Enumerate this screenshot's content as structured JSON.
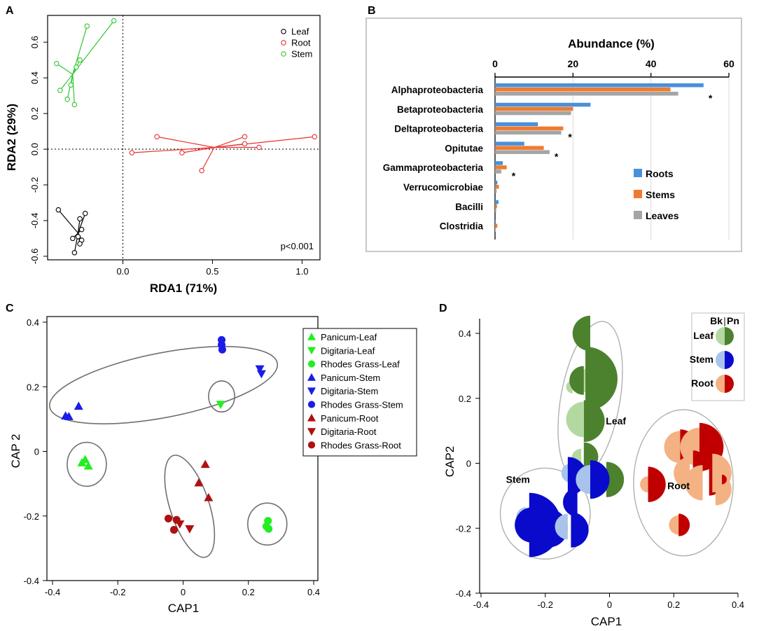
{
  "colors": {
    "leaf_black": "#000000",
    "root_red": "#e8312f",
    "stem_green": "#2ec82e",
    "roots_blue": "#4a90d9",
    "stems_orange": "#ee7b30",
    "leaves_gray": "#a5a5a5",
    "bright_green": "#22ee22",
    "blue": "#1c1ce8",
    "dark_red": "#b01010",
    "dk_green": "#4c822e",
    "lt_green": "#b3d9a0",
    "dk_blue": "#0a0acc",
    "lt_blue": "#a8c4ec",
    "dk_red": "#c00000",
    "lt_salmon": "#f4b183"
  },
  "chart_data": [
    {
      "id": "A",
      "panel_label": "A",
      "type": "scatter",
      "xlabel": "RDA1 (71%)",
      "ylabel": "RDA2 (29%)",
      "xlim": [
        -0.42,
        1.1
      ],
      "ylim": [
        -0.62,
        0.75
      ],
      "xticks": [
        "0.0",
        "0.5",
        "1.0"
      ],
      "xtick_values": [
        0.0,
        0.5,
        1.0
      ],
      "yticks": [
        "-0.6",
        "-0.4",
        "-0.2",
        "0.0",
        "0.2",
        "0.4",
        "0.6"
      ],
      "ytick_values": [
        -0.6,
        -0.4,
        -0.2,
        0.0,
        0.2,
        0.4,
        0.6
      ],
      "annotation": "p<0.001",
      "legend": [
        {
          "name": "Leaf",
          "color": "#000000"
        },
        {
          "name": "Root",
          "color": "#e8312f"
        },
        {
          "name": "Stem",
          "color": "#2ec82e"
        }
      ],
      "groups": [
        {
          "name": "Leaf",
          "color": "#000000",
          "centroid": [
            -0.25,
            -0.47
          ],
          "points": [
            [
              -0.36,
              -0.34
            ],
            [
              -0.21,
              -0.36
            ],
            [
              -0.24,
              -0.39
            ],
            [
              -0.23,
              -0.45
            ],
            [
              -0.25,
              -0.49
            ],
            [
              -0.28,
              -0.5
            ],
            [
              -0.23,
              -0.51
            ],
            [
              -0.24,
              -0.53
            ],
            [
              -0.27,
              -0.58
            ]
          ]
        },
        {
          "name": "Root",
          "color": "#e8312f",
          "centroid": [
            0.51,
            0.01
          ],
          "points": [
            [
              0.19,
              0.07
            ],
            [
              0.05,
              -0.02
            ],
            [
              0.33,
              -0.02
            ],
            [
              0.44,
              -0.12
            ],
            [
              0.68,
              0.07
            ],
            [
              0.68,
              0.03
            ],
            [
              0.76,
              0.01
            ],
            [
              1.07,
              0.07
            ]
          ]
        },
        {
          "name": "Stem",
          "color": "#2ec82e",
          "centroid": [
            -0.28,
            0.42
          ],
          "points": [
            [
              -0.05,
              0.72
            ],
            [
              -0.2,
              0.69
            ],
            [
              -0.37,
              0.48
            ],
            [
              -0.24,
              0.5
            ],
            [
              -0.26,
              0.46
            ],
            [
              -0.29,
              0.36
            ],
            [
              -0.35,
              0.33
            ],
            [
              -0.31,
              0.28
            ],
            [
              -0.27,
              0.25
            ]
          ]
        }
      ]
    },
    {
      "id": "B",
      "panel_label": "B",
      "type": "bar",
      "title": "Abundance (%)",
      "xlim": [
        0,
        60
      ],
      "xticks": [
        "0",
        "20",
        "40",
        "60"
      ],
      "xtick_values": [
        0,
        20,
        40,
        60
      ],
      "categories": [
        "Alphaproteobacteria",
        "Betaproteobacteria",
        "Deltaproteobacteria",
        "Opitutae",
        "Gammaproteobacteria",
        "Verrucomicrobiae",
        "Bacilli",
        "Clostridia"
      ],
      "significant": [
        true,
        false,
        true,
        true,
        true,
        false,
        false,
        false
      ],
      "star_label": "*",
      "series": [
        {
          "name": "Roots",
          "color": "#4a90d9",
          "values": [
            53.5,
            24.5,
            11.0,
            7.5,
            2.0,
            0.6,
            0.9,
            0.2
          ]
        },
        {
          "name": "Stems",
          "color": "#ee7b30",
          "values": [
            45.0,
            20.0,
            17.5,
            12.5,
            3.0,
            1.0,
            0.5,
            0.6
          ]
        },
        {
          "name": "Leaves",
          "color": "#a5a5a5",
          "values": [
            47.0,
            19.5,
            17.0,
            14.0,
            1.6,
            0.4,
            0.3,
            0.1
          ]
        }
      ]
    },
    {
      "id": "C",
      "panel_label": "C",
      "type": "scatter",
      "xlabel": "CAP1",
      "ylabel": "CAP 2",
      "xlim": [
        -0.4,
        0.4
      ],
      "ylim": [
        -0.4,
        0.4
      ],
      "xticks": [
        "-0.4",
        "-0.2",
        "0",
        "0.2",
        "0.4"
      ],
      "xtick_values": [
        -0.4,
        -0.2,
        0,
        0.2,
        0.4
      ],
      "yticks": [
        "-0.4",
        "-0.2",
        "0",
        "0.2",
        "0.4"
      ],
      "ytick_values": [
        -0.4,
        -0.2,
        0,
        0.2,
        0.4
      ],
      "legend": [
        {
          "name": "Panicum-Leaf",
          "marker": "tri-up",
          "color": "#22ee22"
        },
        {
          "name": "Digitaria-Leaf",
          "marker": "tri-down",
          "color": "#22ee22"
        },
        {
          "name": "Rhodes Grass-Leaf",
          "marker": "circle",
          "color": "#22ee22"
        },
        {
          "name": "Panicum-Stem",
          "marker": "tri-up",
          "color": "#1c1ce8"
        },
        {
          "name": "Digitaria-Stem",
          "marker": "tri-down",
          "color": "#1c1ce8"
        },
        {
          "name": "Rhodes Grass-Stem",
          "marker": "circle",
          "color": "#1c1ce8"
        },
        {
          "name": "Panicum-Root",
          "marker": "tri-up",
          "color": "#b01010"
        },
        {
          "name": "Digitaria-Root",
          "marker": "tri-down",
          "color": "#b01010"
        },
        {
          "name": "Rhodes Grass-Root",
          "marker": "circle",
          "color": "#b01010"
        }
      ],
      "points": [
        {
          "group": "Panicum-Leaf",
          "x": -0.3,
          "y": -0.025
        },
        {
          "group": "Panicum-Leaf",
          "x": -0.29,
          "y": -0.045
        },
        {
          "group": "Panicum-Leaf",
          "x": -0.31,
          "y": -0.035
        },
        {
          "group": "Digitaria-Leaf",
          "x": 0.115,
          "y": 0.145
        },
        {
          "group": "Rhodes Grass-Leaf",
          "x": 0.26,
          "y": -0.215
        },
        {
          "group": "Rhodes Grass-Leaf",
          "x": 0.255,
          "y": -0.232
        },
        {
          "group": "Rhodes Grass-Leaf",
          "x": 0.262,
          "y": -0.24
        },
        {
          "group": "Panicum-Stem",
          "x": -0.36,
          "y": 0.11
        },
        {
          "group": "Panicum-Stem",
          "x": -0.35,
          "y": 0.108
        },
        {
          "group": "Panicum-Stem",
          "x": -0.32,
          "y": 0.14
        },
        {
          "group": "Digitaria-Stem",
          "x": 0.235,
          "y": 0.255
        },
        {
          "group": "Digitaria-Stem",
          "x": 0.24,
          "y": 0.24
        },
        {
          "group": "Rhodes Grass-Stem",
          "x": 0.118,
          "y": 0.345
        },
        {
          "group": "Rhodes Grass-Stem",
          "x": 0.118,
          "y": 0.33
        },
        {
          "group": "Rhodes Grass-Stem",
          "x": 0.12,
          "y": 0.315
        },
        {
          "group": "Panicum-Root",
          "x": 0.068,
          "y": -0.04
        },
        {
          "group": "Panicum-Root",
          "x": 0.048,
          "y": -0.097
        },
        {
          "group": "Panicum-Root",
          "x": 0.078,
          "y": -0.143
        },
        {
          "group": "Digitaria-Root",
          "x": -0.01,
          "y": -0.225
        },
        {
          "group": "Digitaria-Root",
          "x": 0.02,
          "y": -0.24
        },
        {
          "group": "Rhodes Grass-Root",
          "x": -0.045,
          "y": -0.208
        },
        {
          "group": "Rhodes Grass-Root",
          "x": -0.02,
          "y": -0.212
        },
        {
          "group": "Rhodes Grass-Root",
          "x": -0.028,
          "y": -0.243
        }
      ],
      "ellipses": [
        {
          "name": "stem-cluster",
          "cx": -0.06,
          "cy": 0.205,
          "rx": 0.355,
          "ry": 0.1,
          "angle": 11
        },
        {
          "name": "digitaria-leaf",
          "cx": 0.118,
          "cy": 0.17,
          "rx": 0.04,
          "ry": 0.048,
          "angle": 0
        },
        {
          "name": "panicum-leaf",
          "cx": -0.295,
          "cy": -0.04,
          "rx": 0.06,
          "ry": 0.068,
          "angle": 0
        },
        {
          "name": "root-cluster",
          "cx": 0.02,
          "cy": -0.17,
          "rx": 0.06,
          "ry": 0.165,
          "angle": 18
        },
        {
          "name": "rhodes-leaf",
          "cx": 0.258,
          "cy": -0.225,
          "rx": 0.06,
          "ry": 0.065,
          "angle": 0
        }
      ]
    },
    {
      "id": "D",
      "panel_label": "D",
      "type": "scatter",
      "xlabel": "CAP1",
      "ylabel": "CAP2",
      "xlim": [
        -0.4,
        0.4
      ],
      "ylim": [
        -0.4,
        0.45
      ],
      "xticks": [
        "-0.4",
        "-0.2",
        "0",
        "0.2",
        "0.4"
      ],
      "xtick_values": [
        -0.4,
        -0.2,
        0,
        0.2,
        0.4
      ],
      "yticks": [
        "-0.4",
        "-0.2",
        "0",
        "0.2",
        "0.4"
      ],
      "ytick_values": [
        -0.4,
        -0.2,
        0,
        0.2,
        0.4
      ],
      "legend_header": {
        "left": "Bk",
        "right": "Pn"
      },
      "legend": [
        {
          "name": "Leaf",
          "light": "#b3d9a0",
          "dark": "#4c822e"
        },
        {
          "name": "Stem",
          "light": "#a8c4ec",
          "dark": "#0a0acc"
        },
        {
          "name": "Root",
          "light": "#f4b183",
          "dark": "#c00000"
        }
      ],
      "group_labels": [
        {
          "text": "Leaf",
          "x": 0.02,
          "y": 0.12
        },
        {
          "text": "Stem",
          "x": -0.285,
          "y": -0.06
        },
        {
          "text": "Root",
          "x": 0.215,
          "y": -0.08
        }
      ],
      "ellipses": [
        {
          "name": "leaf-ellipse",
          "cx": -0.06,
          "cy": 0.195,
          "rx": 0.092,
          "ry": 0.245,
          "angle": -10
        },
        {
          "name": "stem-ellipse",
          "cx": -0.2,
          "cy": -0.155,
          "rx": 0.14,
          "ry": 0.14,
          "angle": 0
        },
        {
          "name": "root-ellipse",
          "cx": 0.23,
          "cy": -0.06,
          "rx": 0.155,
          "ry": 0.225,
          "angle": 0
        }
      ],
      "semicircles": [
        {
          "group": "Leaf",
          "shade": "dark",
          "x": -0.06,
          "y": 0.4,
          "r": 0.055,
          "side": "left"
        },
        {
          "group": "Leaf",
          "shade": "light",
          "x": -0.115,
          "y": 0.235,
          "r": 0.02,
          "side": "left"
        },
        {
          "group": "Leaf",
          "shade": "light",
          "x": -0.06,
          "y": 0.255,
          "r": 0.04,
          "side": "left"
        },
        {
          "group": "Leaf",
          "shade": "dark",
          "x": -0.08,
          "y": 0.255,
          "r": 0.045,
          "side": "left"
        },
        {
          "group": "Leaf",
          "shade": "dark",
          "x": -0.075,
          "y": 0.26,
          "r": 0.1,
          "side": "right"
        },
        {
          "group": "Leaf",
          "shade": "dark",
          "x": -0.08,
          "y": 0.13,
          "r": 0.065,
          "side": "right"
        },
        {
          "group": "Leaf",
          "shade": "light",
          "x": -0.08,
          "y": 0.135,
          "r": 0.055,
          "side": "left"
        },
        {
          "group": "Leaf",
          "shade": "dark",
          "x": -0.08,
          "y": 0.02,
          "r": 0.045,
          "side": "right"
        },
        {
          "group": "Leaf",
          "shade": "light",
          "x": -0.088,
          "y": 0.015,
          "r": 0.03,
          "side": "left"
        },
        {
          "group": "Leaf",
          "shade": "dark",
          "x": -0.01,
          "y": -0.05,
          "r": 0.055,
          "side": "right"
        },
        {
          "group": "Stem",
          "shade": "light",
          "x": -0.12,
          "y": -0.03,
          "r": 0.03,
          "side": "left"
        },
        {
          "group": "Stem",
          "shade": "dark",
          "x": -0.13,
          "y": -0.04,
          "r": 0.06,
          "side": "right"
        },
        {
          "group": "Stem",
          "shade": "dark",
          "x": -0.1,
          "y": -0.12,
          "r": 0.045,
          "side": "left"
        },
        {
          "group": "Stem",
          "shade": "light",
          "x": -0.06,
          "y": -0.05,
          "r": 0.045,
          "side": "left"
        },
        {
          "group": "Stem",
          "shade": "dark",
          "x": -0.06,
          "y": -0.05,
          "r": 0.06,
          "side": "right"
        },
        {
          "group": "Stem",
          "shade": "light",
          "x": -0.26,
          "y": -0.165,
          "r": 0.03,
          "side": "left"
        },
        {
          "group": "Stem",
          "shade": "dark",
          "x": -0.24,
          "y": -0.19,
          "r": 0.055,
          "side": "left"
        },
        {
          "group": "Stem",
          "shade": "dark",
          "x": -0.25,
          "y": -0.19,
          "r": 0.1,
          "side": "right"
        },
        {
          "group": "Stem",
          "shade": "dark",
          "x": -0.19,
          "y": -0.2,
          "r": 0.06,
          "side": "right"
        },
        {
          "group": "Stem",
          "shade": "light",
          "x": -0.13,
          "y": -0.195,
          "r": 0.04,
          "side": "left"
        },
        {
          "group": "Stem",
          "shade": "dark",
          "x": -0.12,
          "y": -0.205,
          "r": 0.055,
          "side": "right"
        },
        {
          "group": "Root",
          "shade": "light",
          "x": 0.22,
          "y": 0.05,
          "r": 0.05,
          "side": "left"
        },
        {
          "group": "Root",
          "shade": "dark",
          "x": 0.22,
          "y": 0.05,
          "r": 0.055,
          "side": "right"
        },
        {
          "group": "Root",
          "shade": "light",
          "x": 0.28,
          "y": 0.05,
          "r": 0.06,
          "side": "left"
        },
        {
          "group": "Root",
          "shade": "dark",
          "x": 0.28,
          "y": 0.05,
          "r": 0.075,
          "side": "right"
        },
        {
          "group": "Root",
          "shade": "dark",
          "x": 0.26,
          "y": 0.0,
          "r": 0.04,
          "side": "right"
        },
        {
          "group": "Root",
          "shade": "light",
          "x": 0.25,
          "y": -0.03,
          "r": 0.05,
          "side": "left"
        },
        {
          "group": "Root",
          "shade": "dark",
          "x": 0.31,
          "y": -0.05,
          "r": 0.05,
          "side": "right"
        },
        {
          "group": "Root",
          "shade": "light",
          "x": 0.32,
          "y": -0.03,
          "r": 0.06,
          "side": "right"
        },
        {
          "group": "Root",
          "shade": "light",
          "x": 0.29,
          "y": -0.06,
          "r": 0.055,
          "side": "left"
        },
        {
          "group": "Root",
          "shade": "light",
          "x": 0.33,
          "y": -0.08,
          "r": 0.05,
          "side": "right"
        },
        {
          "group": "Root",
          "shade": "light",
          "x": 0.12,
          "y": -0.065,
          "r": 0.025,
          "side": "left"
        },
        {
          "group": "Root",
          "shade": "dark",
          "x": 0.12,
          "y": -0.065,
          "r": 0.055,
          "side": "right"
        },
        {
          "group": "Root",
          "shade": "dark",
          "x": 0.35,
          "y": -0.05,
          "r": 0.015,
          "side": "right"
        },
        {
          "group": "Root",
          "shade": "light",
          "x": 0.215,
          "y": -0.19,
          "r": 0.03,
          "side": "left"
        },
        {
          "group": "Root",
          "shade": "dark",
          "x": 0.215,
          "y": -0.19,
          "r": 0.035,
          "side": "right"
        }
      ]
    }
  ]
}
